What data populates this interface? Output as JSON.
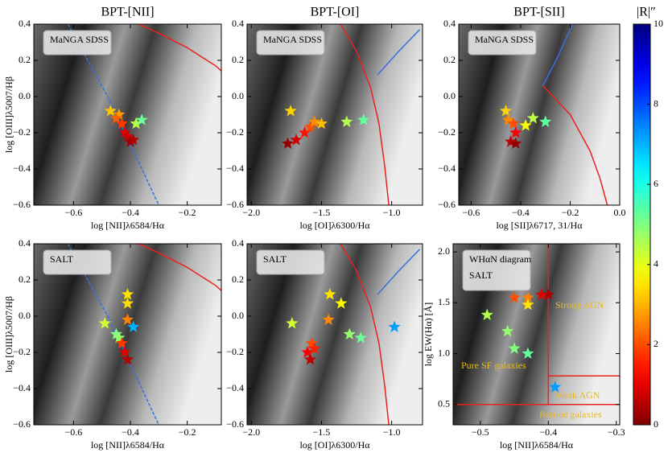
{
  "chart_data": [
    {
      "type": "scatter",
      "title": "BPT-[NII]",
      "inset": [
        "MaNGA SDSS"
      ],
      "xlabel": "log [NII]λ6584/Hα",
      "ylabel": "log [OIII]λ5007/Hβ",
      "xlim": [
        -0.74,
        -0.08
      ],
      "ylim": [
        -0.6,
        0.4
      ],
      "xticks": [
        {
          "value": -0.6,
          "label": "−0.6"
        },
        {
          "value": -0.4,
          "label": "−0.4"
        },
        {
          "value": -0.2,
          "label": "−0.2"
        }
      ],
      "yticks": [
        {
          "value": -0.6,
          "label": "−0.6"
        },
        {
          "value": -0.4,
          "label": "−0.4"
        },
        {
          "value": -0.2,
          "label": "−0.2"
        },
        {
          "value": 0,
          "label": "0.0"
        },
        {
          "value": 0.2,
          "label": "0.2"
        },
        {
          "value": 0.4,
          "label": "0.4"
        }
      ],
      "points": {
        "x": [
          -0.47,
          -0.44,
          -0.45,
          -0.43,
          -0.42,
          -0.41,
          -0.4,
          -0.39,
          -0.38,
          -0.36
        ],
        "y": [
          -0.08,
          -0.1,
          -0.12,
          -0.15,
          -0.2,
          -0.22,
          -0.25,
          -0.24,
          -0.15,
          -0.13
        ],
        "r": [
          3.2,
          2.8,
          2.2,
          1.8,
          1.0,
          0.8,
          0.3,
          0.5,
          4.5,
          5.2
        ]
      },
      "lines": [
        {
          "color": "#e8231e",
          "dash": false,
          "x": [
            -0.4,
            -0.3,
            -0.2,
            -0.1,
            -0.05
          ],
          "y": [
            0.42,
            0.35,
            0.27,
            0.17,
            0.1
          ]
        },
        {
          "color": "#3a6fe0",
          "dash": true,
          "x": [
            -0.62,
            -0.55,
            -0.48,
            -0.42,
            -0.36,
            -0.3
          ],
          "y": [
            0.4,
            0.2,
            0.0,
            -0.2,
            -0.4,
            -0.6
          ]
        }
      ]
    },
    {
      "type": "scatter",
      "title": "BPT-[OI]",
      "inset": [
        "MaNGA SDSS"
      ],
      "xlabel": "log [OI]λ6300/Hα",
      "xlim": [
        -2.03,
        -0.78
      ],
      "ylim": [
        -0.6,
        0.4
      ],
      "xticks": [
        {
          "value": -2.0,
          "label": "−2.0"
        },
        {
          "value": -1.5,
          "label": "−1.5"
        },
        {
          "value": -1.0,
          "label": "−1.0"
        }
      ],
      "yticks": [
        {
          "value": -0.6,
          "label": "−0.6"
        },
        {
          "value": -0.4,
          "label": "−0.4"
        },
        {
          "value": -0.2,
          "label": "−0.2"
        },
        {
          "value": 0,
          "label": "0.0"
        },
        {
          "value": 0.2,
          "label": "0.2"
        },
        {
          "value": 0.4,
          "label": "0.4"
        }
      ],
      "points": {
        "x": [
          -1.72,
          -1.74,
          -1.68,
          -1.62,
          -1.58,
          -1.55,
          -1.5,
          -1.32,
          -1.2
        ],
        "y": [
          -0.08,
          -0.26,
          -0.24,
          -0.2,
          -0.17,
          -0.14,
          -0.15,
          -0.14,
          -0.13
        ],
        "r": [
          3.3,
          0.2,
          0.8,
          1.4,
          2.0,
          2.6,
          3.1,
          4.5,
          5.3
        ]
      },
      "lines": [
        {
          "color": "#e8231e",
          "dash": false,
          "x": [
            -1.38,
            -1.25,
            -1.15,
            -1.09,
            -1.05,
            -1.02
          ],
          "y": [
            0.42,
            0.25,
            0.05,
            -0.15,
            -0.38,
            -0.6
          ]
        },
        {
          "color": "#3a6fe0",
          "dash": false,
          "x": [
            -1.1,
            -0.95,
            -0.8
          ],
          "y": [
            0.12,
            0.25,
            0.37
          ]
        }
      ]
    },
    {
      "type": "scatter",
      "title": "BPT-[SII]",
      "inset": [
        "MaNGA SDSS"
      ],
      "xlabel": "log [SII]λ6717, 31/Hα",
      "xlim": [
        -0.65,
        0.0
      ],
      "ylim": [
        -0.6,
        0.4
      ],
      "xticks": [
        {
          "value": -0.6,
          "label": "−0.6"
        },
        {
          "value": -0.4,
          "label": "−0.4"
        },
        {
          "value": -0.2,
          "label": "−0.2"
        },
        {
          "value": 0,
          "label": "0.0"
        }
      ],
      "yticks": [
        {
          "value": -0.6,
          "label": "−0.6"
        },
        {
          "value": -0.4,
          "label": "−0.4"
        },
        {
          "value": -0.2,
          "label": "−0.2"
        },
        {
          "value": 0,
          "label": "0.0"
        },
        {
          "value": 0.2,
          "label": "0.2"
        },
        {
          "value": 0.4,
          "label": "0.4"
        }
      ],
      "points": {
        "x": [
          -0.46,
          -0.45,
          -0.43,
          -0.42,
          -0.44,
          -0.42,
          -0.38,
          -0.35,
          -0.3
        ],
        "y": [
          -0.08,
          -0.13,
          -0.15,
          -0.2,
          -0.25,
          -0.26,
          -0.16,
          -0.12,
          -0.14
        ],
        "r": [
          3.3,
          2.6,
          2.0,
          1.2,
          0.6,
          0.2,
          3.8,
          4.4,
          5.3
        ]
      },
      "lines": [
        {
          "color": "#e8231e",
          "dash": false,
          "x": [
            -0.31,
            -0.2,
            -0.12,
            -0.08,
            -0.05
          ],
          "y": [
            0.06,
            -0.1,
            -0.3,
            -0.45,
            -0.6
          ]
        },
        {
          "color": "#3a6fe0",
          "dash": false,
          "x": [
            -0.31,
            -0.25,
            -0.19
          ],
          "y": [
            0.06,
            0.22,
            0.4
          ]
        }
      ]
    },
    {
      "type": "scatter",
      "inset": [
        "SALT"
      ],
      "xlabel": "log [NII]λ6584/Hα",
      "ylabel": "log [OIII]λ5007/Hβ",
      "xlim": [
        -0.74,
        -0.08
      ],
      "ylim": [
        -0.6,
        0.4
      ],
      "xticks": [
        {
          "value": -0.6,
          "label": "−0.6"
        },
        {
          "value": -0.4,
          "label": "−0.4"
        },
        {
          "value": -0.2,
          "label": "−0.2"
        }
      ],
      "yticks": [
        {
          "value": -0.6,
          "label": "−0.6"
        },
        {
          "value": -0.4,
          "label": "−0.4"
        },
        {
          "value": -0.2,
          "label": "−0.2"
        },
        {
          "value": 0,
          "label": "0.0"
        },
        {
          "value": 0.2,
          "label": "0.2"
        },
        {
          "value": 0.4,
          "label": "0.4"
        }
      ],
      "points": {
        "x": [
          -0.41,
          -0.41,
          -0.41,
          -0.49,
          -0.45,
          -0.44,
          -0.43,
          -0.42,
          -0.41,
          -0.39
        ],
        "y": [
          0.12,
          0.07,
          -0.02,
          -0.04,
          -0.1,
          -0.12,
          -0.15,
          -0.2,
          -0.24,
          -0.06
        ],
        "r": [
          3.5,
          3.4,
          2.5,
          4.2,
          5.0,
          4.8,
          1.8,
          1.0,
          0.5,
          7.0
        ]
      },
      "lines": [
        {
          "color": "#e8231e",
          "dash": false,
          "x": [
            -0.4,
            -0.3,
            -0.2,
            -0.1,
            -0.05
          ],
          "y": [
            0.42,
            0.35,
            0.27,
            0.17,
            0.1
          ]
        },
        {
          "color": "#3a6fe0",
          "dash": true,
          "x": [
            -0.62,
            -0.55,
            -0.48,
            -0.42,
            -0.36,
            -0.3
          ],
          "y": [
            0.4,
            0.2,
            0.0,
            -0.2,
            -0.4,
            -0.6
          ]
        }
      ]
    },
    {
      "type": "scatter",
      "inset": [
        "SALT"
      ],
      "xlabel": "log [OI]λ6300/Hα",
      "xlim": [
        -2.03,
        -0.78
      ],
      "ylim": [
        -0.6,
        0.4
      ],
      "xticks": [
        {
          "value": -2.0,
          "label": "−2.0"
        },
        {
          "value": -1.5,
          "label": "−1.5"
        },
        {
          "value": -1.0,
          "label": "−1.0"
        }
      ],
      "yticks": [
        {
          "value": -0.6,
          "label": "−0.6"
        },
        {
          "value": -0.4,
          "label": "−0.4"
        },
        {
          "value": -0.2,
          "label": "−0.2"
        },
        {
          "value": 0,
          "label": "0.0"
        },
        {
          "value": 0.2,
          "label": "0.2"
        },
        {
          "value": 0.4,
          "label": "0.4"
        }
      ],
      "points": {
        "x": [
          -1.71,
          -1.44,
          -1.36,
          -1.45,
          -1.57,
          -1.6,
          -1.58,
          -1.55,
          -1.3,
          -1.22,
          -0.98
        ],
        "y": [
          -0.04,
          0.12,
          0.07,
          -0.02,
          -0.15,
          -0.2,
          -0.24,
          -0.18,
          -0.1,
          -0.12,
          -0.06
        ],
        "r": [
          4.2,
          3.5,
          3.7,
          2.6,
          2.0,
          1.2,
          0.6,
          1.5,
          4.8,
          5.2,
          7.2
        ]
      },
      "lines": [
        {
          "color": "#e8231e",
          "dash": false,
          "x": [
            -1.38,
            -1.25,
            -1.15,
            -1.09,
            -1.05,
            -1.02
          ],
          "y": [
            0.42,
            0.25,
            0.05,
            -0.15,
            -0.38,
            -0.6
          ]
        },
        {
          "color": "#3a6fe0",
          "dash": false,
          "x": [
            -1.1,
            -0.95,
            -0.8
          ],
          "y": [
            0.12,
            0.25,
            0.37
          ]
        }
      ]
    },
    {
      "type": "scatter",
      "inset": [
        "WHαN diagram",
        "SALT"
      ],
      "xlabel": "log [NII]λ6584/Hα",
      "ylabel": "log EW(Hα) [Å]",
      "xlim": [
        -0.54,
        -0.295
      ],
      "ylim": [
        0.3,
        2.08
      ],
      "xticks": [
        {
          "value": -0.5,
          "label": "−0.5"
        },
        {
          "value": -0.4,
          "label": "−0.4"
        },
        {
          "value": -0.3,
          "label": "−0.3"
        }
      ],
      "yticks": [
        0.5,
        {
          "value": 1.0,
          "label": "1.0"
        },
        1.5,
        {
          "value": 2.0,
          "label": "2.0"
        }
      ],
      "points": {
        "x": [
          -0.45,
          -0.43,
          -0.41,
          -0.4,
          -0.43,
          -0.49,
          -0.46,
          -0.45,
          -0.43,
          -0.39
        ],
        "y": [
          1.55,
          1.55,
          1.58,
          1.58,
          1.48,
          1.38,
          1.22,
          1.05,
          1.0,
          0.67
        ],
        "r": [
          2.0,
          2.5,
          1.0,
          0.5,
          3.5,
          4.5,
          4.8,
          5.0,
          5.3,
          7.2
        ]
      },
      "lines": [
        {
          "color": "#e8231e",
          "dash": false,
          "x": [
            -0.4,
            -0.4
          ],
          "y": [
            0.5,
            2.08
          ]
        },
        {
          "color": "#e8231e",
          "dash": false,
          "x": [
            -0.4,
            -0.295
          ],
          "y": [
            0.78,
            0.78
          ]
        },
        {
          "color": "#e8231e",
          "dash": false,
          "x": [
            -0.54,
            -0.295
          ],
          "y": [
            0.5,
            0.5
          ]
        }
      ],
      "annotations": [
        "Strong AGN",
        "Pure SF galaxies",
        "Weak AGN",
        "Retired galaxies"
      ]
    }
  ],
  "colorbar": {
    "label": "|R|″",
    "lim": [
      0,
      10
    ],
    "ticks": [
      0,
      2,
      4,
      6,
      8,
      10
    ]
  }
}
